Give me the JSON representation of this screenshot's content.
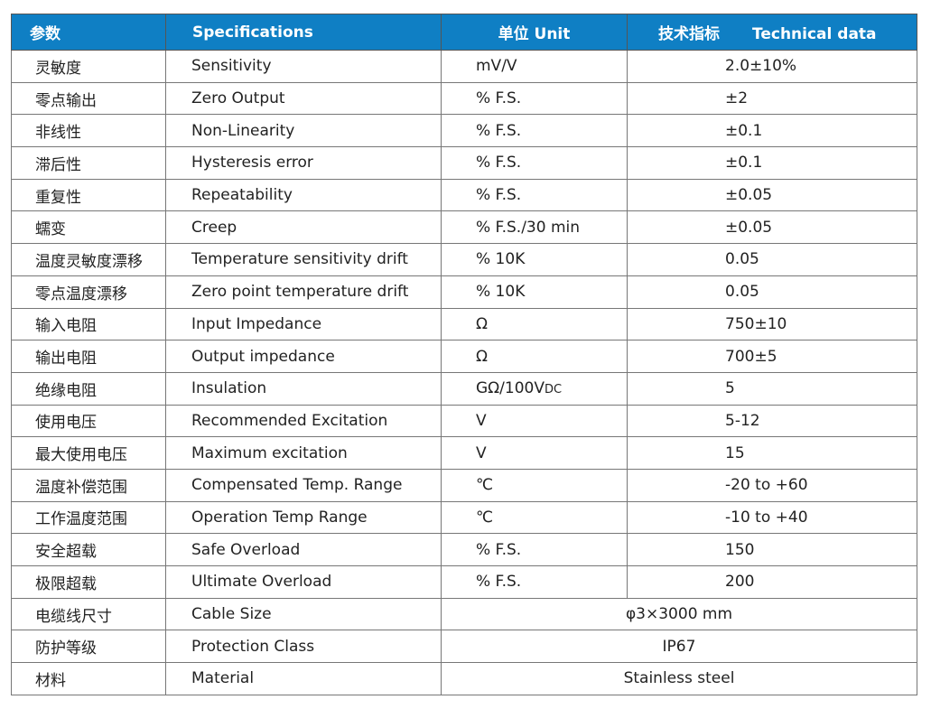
{
  "header": {
    "param_cn": "参数",
    "spec": "Specifications",
    "unit": "单位 Unit",
    "tech_cn": "技术指标",
    "tech_en": "Technical data"
  },
  "header_color": "#0f7fc4",
  "rows": [
    {
      "cn": "灵敏度",
      "en": "Sensitivity",
      "unit": "mV/V",
      "value": "2.0±10%"
    },
    {
      "cn": "零点输出",
      "en": "Zero Output",
      "unit": "% F.S.",
      "value": "±2"
    },
    {
      "cn": "非线性",
      "en": "Non-Linearity",
      "unit": "% F.S.",
      "value": "±0.1"
    },
    {
      "cn": "滞后性",
      "en": "Hysteresis error",
      "unit": "% F.S.",
      "value": "±0.1"
    },
    {
      "cn": "重复性",
      "en": "Repeatability",
      "unit": "% F.S.",
      "value": "±0.05"
    },
    {
      "cn": "蠕变",
      "en": "Creep",
      "unit": "% F.S./30 min",
      "value": "±0.05"
    },
    {
      "cn": "温度灵敏度漂移",
      "en": "Temperature sensitivity drift",
      "unit": "% 10K",
      "value": "0.05"
    },
    {
      "cn": "零点温度漂移",
      "en": "Zero point temperature drift",
      "unit": "% 10K",
      "value": "0.05"
    },
    {
      "cn": "输入电阻",
      "en": "Input Impedance",
      "unit": "Ω",
      "value": "750±10"
    },
    {
      "cn": "输出电阻",
      "en": "Output impedance",
      "unit": "Ω",
      "value": "700±5"
    },
    {
      "cn": "绝缘电阻",
      "en": "Insulation",
      "unit": "GΩ/100V",
      "unit_sub": "DC",
      "value": "5"
    },
    {
      "cn": "使用电压",
      "en": "Recommended Excitation",
      "unit": "V",
      "value": "5-12"
    },
    {
      "cn": "最大使用电压",
      "en": "Maximum excitation",
      "unit": "V",
      "value": "15"
    },
    {
      "cn": "温度补偿范围",
      "en": "Compensated Temp. Range",
      "unit": "℃",
      "value": "-20 to +60"
    },
    {
      "cn": "工作温度范围",
      "en": "Operation Temp Range",
      "unit": "℃",
      "value": "-10 to +40"
    },
    {
      "cn": "安全超载",
      "en": "Safe Overload",
      "unit": "% F.S.",
      "value": "150"
    },
    {
      "cn": "极限超载",
      "en": "Ultimate Overload",
      "unit": "% F.S.",
      "value": "200"
    },
    {
      "cn": "电缆线尺寸",
      "en": "Cable Size",
      "merged": "φ3×3000 mm"
    },
    {
      "cn": "防护等级",
      "en": "Protection Class",
      "merged": "IP67"
    },
    {
      "cn": "材料",
      "en": "Material",
      "merged": "Stainless steel"
    }
  ]
}
